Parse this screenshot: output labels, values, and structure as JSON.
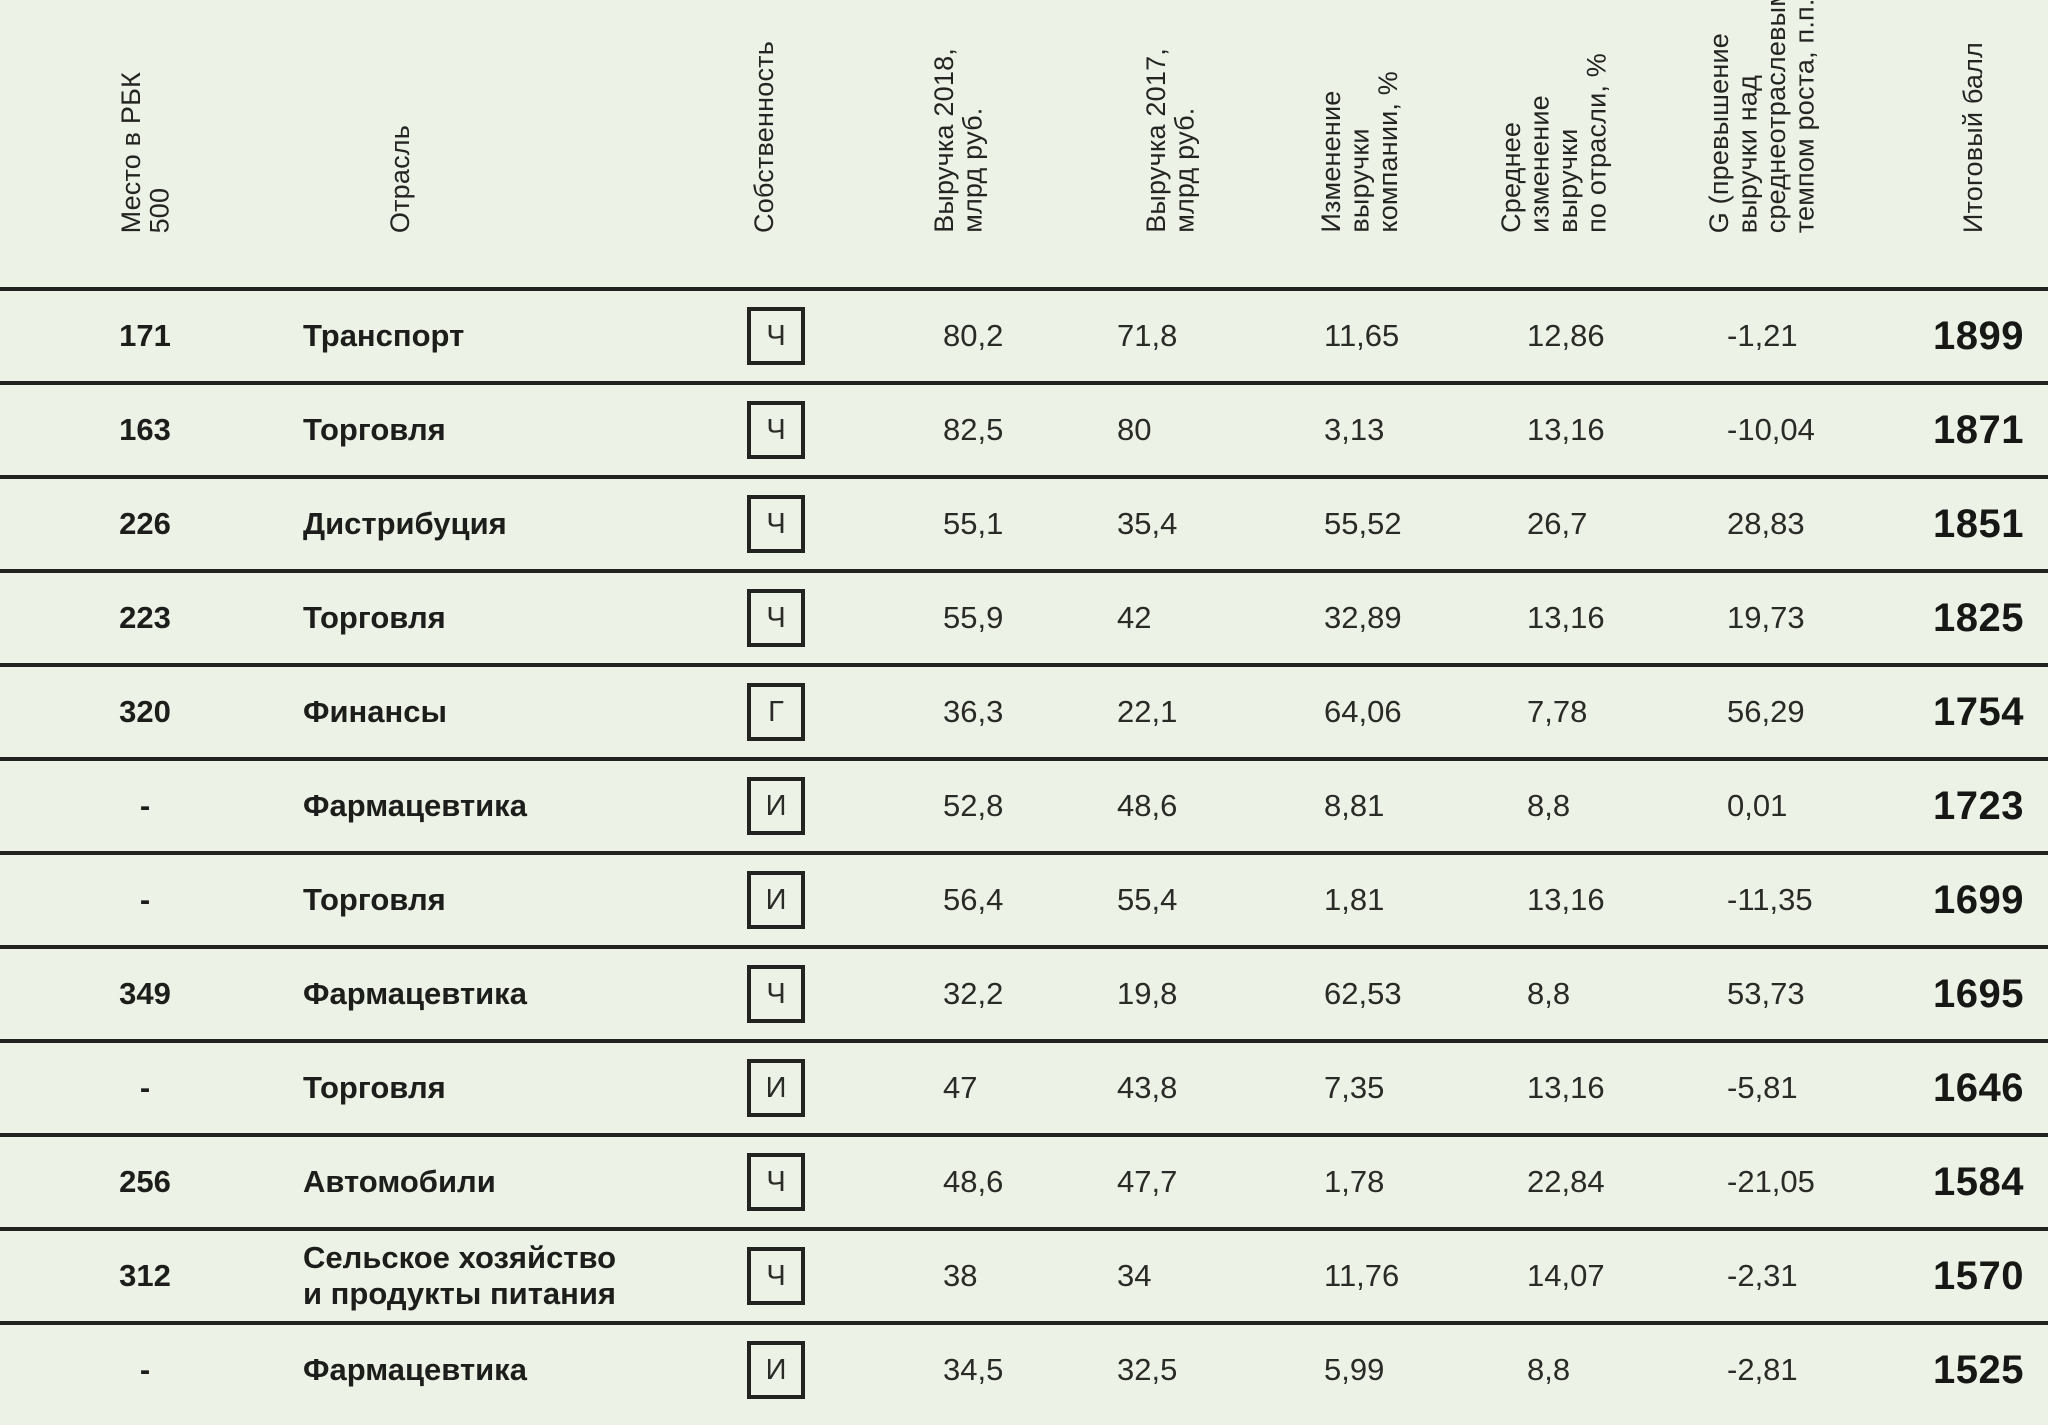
{
  "style": {
    "background_color": "#ecf2e6",
    "line_color": "#222220",
    "text_color": "#1f1f1d"
  },
  "chart_data": {
    "type": "table",
    "columns": [
      {
        "key": "place",
        "label": "Место в РБК\n500"
      },
      {
        "key": "industry",
        "label": "Отрасль"
      },
      {
        "key": "ownership",
        "label": "Собственность"
      },
      {
        "key": "rev_2018",
        "label": "Выручка 2018,\nмлрд руб."
      },
      {
        "key": "rev_2017",
        "label": "Выручка 2017,\nмлрд руб."
      },
      {
        "key": "change_pct",
        "label": "Изменение\nвыручки\nкомпании, %"
      },
      {
        "key": "industry_avg_pct",
        "label": "Среднее\nизменение\nвыручки\nпо отрасли, %"
      },
      {
        "key": "g",
        "label": "G (превышение\nвыручки над\nсреднеотраслевым\nтемпом роста, п.п.)"
      },
      {
        "key": "score",
        "label": "Итоговый балл"
      }
    ],
    "rows": [
      {
        "place": "171",
        "industry": "Транспорт",
        "ownership": "Ч",
        "rev_2018": "80,2",
        "rev_2017": "71,8",
        "change_pct": "11,65",
        "industry_avg_pct": "12,86",
        "g": "-1,21",
        "score": "1899"
      },
      {
        "place": "163",
        "industry": "Торговля",
        "ownership": "Ч",
        "rev_2018": "82,5",
        "rev_2017": "80",
        "change_pct": "3,13",
        "industry_avg_pct": "13,16",
        "g": "-10,04",
        "score": "1871"
      },
      {
        "place": "226",
        "industry": "Дистрибуция",
        "ownership": "Ч",
        "rev_2018": "55,1",
        "rev_2017": "35,4",
        "change_pct": "55,52",
        "industry_avg_pct": "26,7",
        "g": "28,83",
        "score": "1851"
      },
      {
        "place": "223",
        "industry": "Торговля",
        "ownership": "Ч",
        "rev_2018": "55,9",
        "rev_2017": "42",
        "change_pct": "32,89",
        "industry_avg_pct": "13,16",
        "g": "19,73",
        "score": "1825"
      },
      {
        "place": "320",
        "industry": "Финансы",
        "ownership": "Г",
        "rev_2018": "36,3",
        "rev_2017": "22,1",
        "change_pct": "64,06",
        "industry_avg_pct": "7,78",
        "g": "56,29",
        "score": "1754"
      },
      {
        "place": "-",
        "industry": "Фармацевтика",
        "ownership": "И",
        "rev_2018": "52,8",
        "rev_2017": "48,6",
        "change_pct": "8,81",
        "industry_avg_pct": "8,8",
        "g": "0,01",
        "score": "1723"
      },
      {
        "place": "-",
        "industry": "Торговля",
        "ownership": "И",
        "rev_2018": "56,4",
        "rev_2017": "55,4",
        "change_pct": "1,81",
        "industry_avg_pct": "13,16",
        "g": "-11,35",
        "score": "1699"
      },
      {
        "place": "349",
        "industry": "Фармацевтика",
        "ownership": "Ч",
        "rev_2018": "32,2",
        "rev_2017": "19,8",
        "change_pct": "62,53",
        "industry_avg_pct": "8,8",
        "g": "53,73",
        "score": "1695"
      },
      {
        "place": "-",
        "industry": "Торговля",
        "ownership": "И",
        "rev_2018": "47",
        "rev_2017": "43,8",
        "change_pct": "7,35",
        "industry_avg_pct": "13,16",
        "g": "-5,81",
        "score": "1646"
      },
      {
        "place": "256",
        "industry": "Автомобили",
        "ownership": "Ч",
        "rev_2018": "48,6",
        "rev_2017": "47,7",
        "change_pct": "1,78",
        "industry_avg_pct": "22,84",
        "g": "-21,05",
        "score": "1584"
      },
      {
        "place": "312",
        "industry": "Сельское хозяйство\nи продукты питания",
        "ownership": "Ч",
        "rev_2018": "38",
        "rev_2017": "34",
        "change_pct": "11,76",
        "industry_avg_pct": "14,07",
        "g": "-2,31",
        "score": "1570"
      },
      {
        "place": "-",
        "industry": "Фармацевтика",
        "ownership": "И",
        "rev_2018": "34,5",
        "rev_2017": "32,5",
        "change_pct": "5,99",
        "industry_avg_pct": "8,8",
        "g": "-2,81",
        "score": "1525"
      }
    ]
  }
}
